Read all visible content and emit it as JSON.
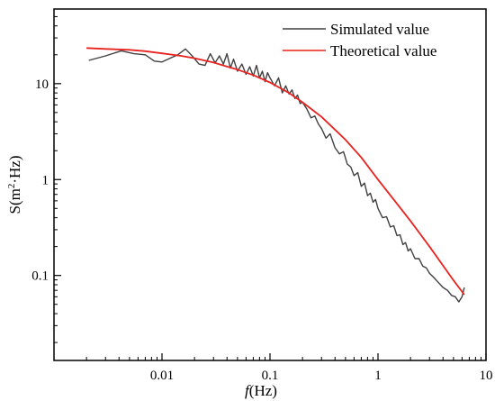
{
  "chart_data": {
    "type": "line",
    "x_scale": "log",
    "y_scale": "log",
    "xlim": [
      0.001,
      10
    ],
    "ylim": [
      0.013,
      60
    ],
    "x_ticks": [
      {
        "value": 0.01,
        "label": "0.01"
      },
      {
        "value": 0.1,
        "label": "0.1"
      },
      {
        "value": 1,
        "label": "1"
      },
      {
        "value": 10,
        "label": "10"
      }
    ],
    "y_ticks": [
      {
        "value": 0.1,
        "label": "0.1"
      },
      {
        "value": 1,
        "label": "1"
      },
      {
        "value": 10,
        "label": "10"
      }
    ],
    "xlabel_italic": "f",
    "xlabel_rest": "(Hz)",
    "ylabel_base": "S(m",
    "ylabel_sup": "2",
    "ylabel_end": "·Hz)",
    "grid": false,
    "legend_position": "top-right",
    "series": [
      {
        "name": "Simulated value",
        "color": "#404040",
        "x": [
          0.0021,
          0.003,
          0.0042,
          0.0055,
          0.007,
          0.0085,
          0.01,
          0.012,
          0.014,
          0.0165,
          0.019,
          0.022,
          0.025,
          0.028,
          0.031,
          0.034,
          0.037,
          0.04,
          0.043,
          0.046,
          0.05,
          0.055,
          0.06,
          0.065,
          0.07,
          0.075,
          0.08,
          0.085,
          0.09,
          0.095,
          0.1,
          0.11,
          0.12,
          0.13,
          0.14,
          0.15,
          0.16,
          0.17,
          0.18,
          0.19,
          0.2,
          0.22,
          0.24,
          0.26,
          0.28,
          0.3,
          0.33,
          0.36,
          0.4,
          0.44,
          0.48,
          0.52,
          0.56,
          0.6,
          0.65,
          0.7,
          0.75,
          0.8,
          0.85,
          0.9,
          0.95,
          1.0,
          1.1,
          1.2,
          1.3,
          1.4,
          1.5,
          1.6,
          1.7,
          1.8,
          1.9,
          2.0,
          2.2,
          2.4,
          2.6,
          2.8,
          3.0,
          3.3,
          3.6,
          4.0,
          4.4,
          4.8,
          5.2,
          5.6,
          6.0,
          6.3
        ],
        "y": [
          17.5,
          19.5,
          22.0,
          20.5,
          20.0,
          17.2,
          16.8,
          18.5,
          20.0,
          23.0,
          19.5,
          16.0,
          15.5,
          20.5,
          16.5,
          19.5,
          16.0,
          20.5,
          14.5,
          18.0,
          13.5,
          16.0,
          12.5,
          15.0,
          12.0,
          15.5,
          11.5,
          13.5,
          10.5,
          13.0,
          11.5,
          9.5,
          11.5,
          8.0,
          9.5,
          7.8,
          8.6,
          7.0,
          7.6,
          6.2,
          6.4,
          5.4,
          4.4,
          4.6,
          3.8,
          3.4,
          2.7,
          3.0,
          2.15,
          1.85,
          1.95,
          1.45,
          1.35,
          1.1,
          1.18,
          0.85,
          0.92,
          0.68,
          0.72,
          0.58,
          0.62,
          0.5,
          0.4,
          0.41,
          0.32,
          0.33,
          0.26,
          0.265,
          0.21,
          0.22,
          0.18,
          0.19,
          0.15,
          0.15,
          0.125,
          0.12,
          0.105,
          0.095,
          0.085,
          0.075,
          0.07,
          0.062,
          0.06,
          0.053,
          0.06,
          0.075
        ]
      },
      {
        "name": "Theoretical value",
        "color": "#e8231f",
        "x": [
          0.002,
          0.003,
          0.005,
          0.007,
          0.01,
          0.015,
          0.02,
          0.03,
          0.05,
          0.07,
          0.1,
          0.15,
          0.2,
          0.3,
          0.5,
          0.7,
          1.0,
          1.5,
          2.0,
          3.0,
          5.0,
          6.3
        ],
        "y": [
          23.5,
          23.0,
          22.5,
          21.8,
          20.7,
          19.5,
          18.4,
          16.6,
          14.0,
          12.3,
          10.3,
          8.0,
          6.4,
          4.5,
          2.6,
          1.7,
          1.0,
          0.56,
          0.37,
          0.2,
          0.089,
          0.063
        ]
      }
    ]
  }
}
